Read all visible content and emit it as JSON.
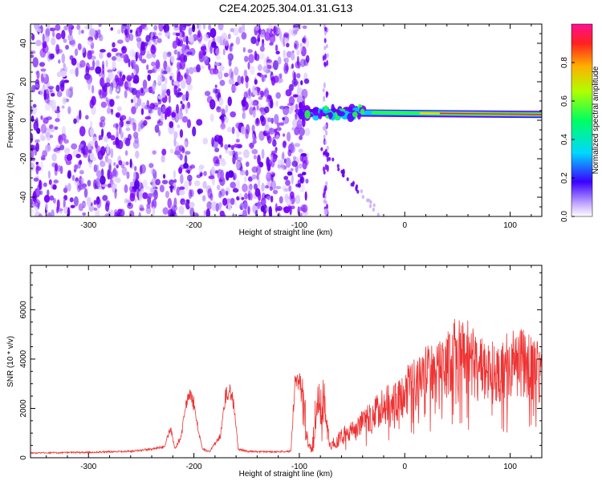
{
  "title": "C2E4.2025.304.01.31.G13",
  "chart_data": [
    {
      "type": "heatmap",
      "id": "spectrogram",
      "xlabel": "Height of straight line (km)",
      "ylabel": "Frequency (Hz)",
      "xlim": [
        -355,
        130
      ],
      "ylim": [
        -50,
        50
      ],
      "xticks": [
        -300,
        -200,
        -100,
        0,
        100
      ],
      "xtick_labels": [
        "-300",
        "-200",
        "-100",
        "0",
        "100"
      ],
      "yticks": [
        -40,
        -20,
        0,
        20,
        40
      ],
      "ytick_labels": [
        "-40",
        "-20",
        "0",
        "20",
        "40"
      ],
      "colorbar": {
        "label": "Normalized spectral amplitude",
        "range": [
          0,
          1
        ],
        "ticks": [
          0.0,
          0.2,
          0.4,
          0.6,
          0.8
        ],
        "tick_labels": [
          "0.0",
          "0.2",
          "0.4",
          "0.6",
          "0.8"
        ]
      },
      "features": {
        "noise_region_x": [
          -355,
          -100
        ],
        "carrier_line": {
          "x_start": -100,
          "x_end": 130,
          "freq_start": 4,
          "freq_end": 3
        },
        "vertical_streak_x": -75,
        "diagonal_streak": {
          "x_start": -80,
          "x_end": -25,
          "freq_start": -14,
          "freq_end": -48
        }
      },
      "colors": {
        "noise": "#7a00ff",
        "carrier_core": "#ff1a40",
        "carrier_glow": "#20ff40"
      }
    },
    {
      "type": "line",
      "id": "snr",
      "xlabel": "Height of straight line (km)",
      "ylabel": "SNR (10 * v/v)",
      "xlim": [
        -355,
        130
      ],
      "ylim": [
        0,
        7800
      ],
      "xticks": [
        -300,
        -200,
        -100,
        0,
        100
      ],
      "xtick_labels": [
        "-300",
        "-200",
        "-100",
        "0",
        "100"
      ],
      "yticks": [
        0,
        2000,
        4000,
        6000
      ],
      "ytick_labels": [
        "0",
        "2000",
        "4000",
        "6000"
      ],
      "series": [
        {
          "name": "SNR",
          "color": "#ee3333",
          "envelope": {
            "x": [
              -355,
              -300,
              -260,
              -240,
              -228,
              -222,
              -218,
              -212,
              -208,
              -204,
              -200,
              -196,
              -192,
              -185,
              -175,
              -170,
              -166,
              -162,
              -158,
              -150,
              -140,
              -120,
              -108,
              -104,
              -100,
              -96,
              -92,
              -88,
              -84,
              -80,
              -76,
              -72,
              -66,
              -60,
              -50,
              -40,
              -30,
              -20,
              -10,
              0,
              10,
              20,
              30,
              40,
              50,
              60,
              70,
              80,
              90,
              100,
              110,
              120,
              130
            ],
            "y": [
              220,
              250,
              300,
              400,
              500,
              1400,
              400,
              1000,
              2400,
              2800,
              2500,
              1300,
              400,
              300,
              1000,
              2800,
              3200,
              2500,
              400,
              300,
              280,
              280,
              300,
              3600,
              3700,
              3200,
              1200,
              400,
              3000,
              3400,
              3000,
              1000,
              800,
              1200,
              1600,
              2000,
              2500,
              2800,
              3200,
              3600,
              4200,
              4600,
              4800,
              5200,
              5800,
              5600,
              5000,
              4700,
              4900,
              5200,
              5400,
              4900,
              4600
            ]
          }
        }
      ]
    }
  ]
}
